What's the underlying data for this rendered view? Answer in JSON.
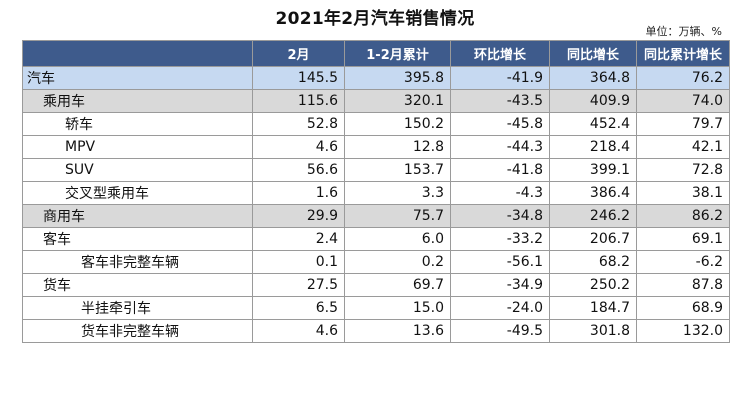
{
  "title": "2021年2月汽车销售情况",
  "unit": "单位：万辆、%",
  "columns": [
    "",
    "2月",
    "1-2月累计",
    "环比增长",
    "同比增长",
    "同比累计增长"
  ],
  "rows": [
    {
      "label": "汽车",
      "level": 0,
      "style": "lvl0",
      "values": [
        "145.5",
        "395.8",
        "-41.9",
        "364.8",
        "76.2"
      ]
    },
    {
      "label": "乘用车",
      "level": 1,
      "style": "lvl1",
      "values": [
        "115.6",
        "320.1",
        "-43.5",
        "409.9",
        "74.0"
      ]
    },
    {
      "label": "轿车",
      "level": 2,
      "style": "plain",
      "values": [
        "52.8",
        "150.2",
        "-45.8",
        "452.4",
        "79.7"
      ]
    },
    {
      "label": "MPV",
      "level": 2,
      "style": "plain",
      "values": [
        "4.6",
        "12.8",
        "-44.3",
        "218.4",
        "42.1"
      ]
    },
    {
      "label": "SUV",
      "level": 2,
      "style": "plain",
      "values": [
        "56.6",
        "153.7",
        "-41.8",
        "399.1",
        "72.8"
      ]
    },
    {
      "label": "交叉型乘用车",
      "level": 2,
      "style": "plain",
      "values": [
        "1.6",
        "3.3",
        "-4.3",
        "386.4",
        "38.1"
      ]
    },
    {
      "label": "商用车",
      "level": 1,
      "style": "lvl1",
      "values": [
        "29.9",
        "75.7",
        "-34.8",
        "246.2",
        "86.2"
      ]
    },
    {
      "label": "客车",
      "level": 1,
      "style": "plain",
      "values": [
        "2.4",
        "6.0",
        "-33.2",
        "206.7",
        "69.1"
      ]
    },
    {
      "label": "客车非完整车辆",
      "level": 3,
      "style": "plain",
      "values": [
        "0.1",
        "0.2",
        "-56.1",
        "68.2",
        "-6.2"
      ]
    },
    {
      "label": "货车",
      "level": 1,
      "style": "plain",
      "values": [
        "27.5",
        "69.7",
        "-34.9",
        "250.2",
        "87.8"
      ]
    },
    {
      "label": "半挂牵引车",
      "level": 3,
      "style": "plain",
      "values": [
        "6.5",
        "15.0",
        "-24.0",
        "184.7",
        "68.9"
      ]
    },
    {
      "label": "货车非完整车辆",
      "level": 3,
      "style": "plain",
      "values": [
        "4.6",
        "13.6",
        "-49.5",
        "301.8",
        "132.0"
      ]
    }
  ]
}
